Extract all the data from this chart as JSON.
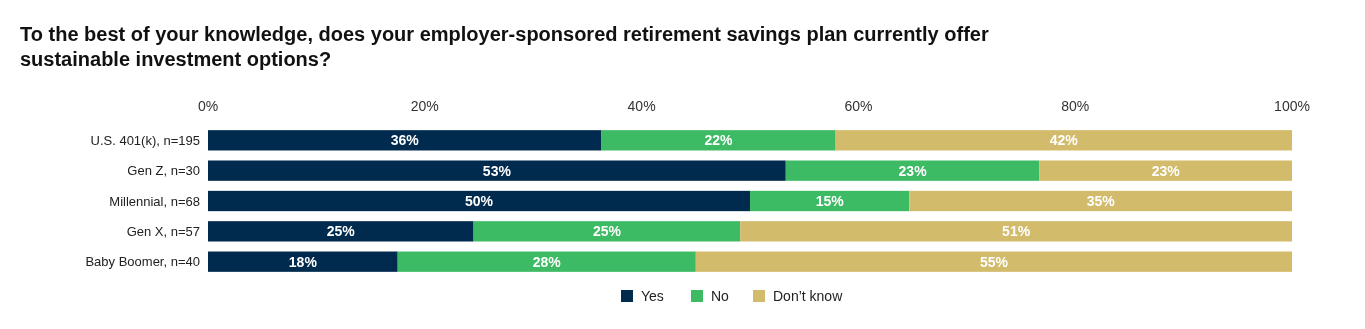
{
  "chart_data": {
    "type": "bar",
    "orientation": "horizontal",
    "stacked": true,
    "title": "To the best of your knowledge, does your employer-sponsored retirement savings plan currently offer sustainable investment options?",
    "categories": [
      "U.S. 401(k), n=195",
      "Gen Z, n=30",
      "Millennial, n=68",
      "Gen X, n=57",
      "Baby Boomer, n=40"
    ],
    "series": [
      {
        "name": "Yes",
        "color": "#002a4e",
        "values": [
          36.3,
          53.3,
          50.0,
          24.5,
          17.5
        ],
        "value_labels": [
          "36%",
          "53%",
          "50%",
          "25%",
          "18%"
        ]
      },
      {
        "name": "No",
        "color": "#3dba64",
        "values": [
          21.6,
          23.4,
          14.7,
          24.6,
          27.5
        ],
        "value_labels": [
          "22%",
          "23%",
          "15%",
          "25%",
          "28%"
        ]
      },
      {
        "name": "Don’t know",
        "color": "#d2bb6a",
        "values": [
          42.1,
          23.3,
          35.3,
          50.9,
          55.0
        ],
        "value_labels": [
          "42%",
          "23%",
          "35%",
          "51%",
          "55%"
        ]
      }
    ],
    "xlim": [
      0,
      100
    ],
    "xticks": [
      {
        "value": 0,
        "label": "0%"
      },
      {
        "value": 20,
        "label": "20%"
      },
      {
        "value": 40,
        "label": "40%"
      },
      {
        "value": 60,
        "label": "60%"
      },
      {
        "value": 80,
        "label": "80%"
      },
      {
        "value": 100,
        "label": "100%"
      }
    ],
    "legend": "bottom"
  }
}
